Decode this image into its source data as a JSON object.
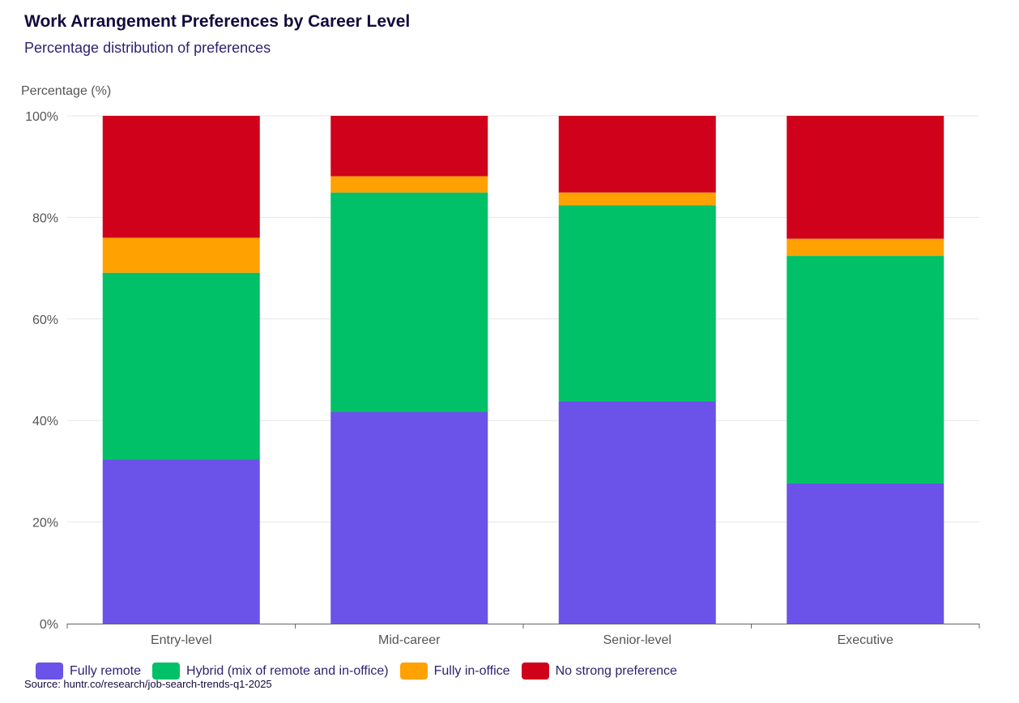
{
  "chart_data": {
    "type": "bar",
    "stacked": true,
    "title": "Work Arrangement Preferences by Career Level",
    "subtitle": "Percentage distribution of preferences",
    "ylabel": "Percentage (%)",
    "xlabel": "",
    "ylim": [
      0,
      100
    ],
    "yticks": [
      "0%",
      "20%",
      "40%",
      "60%",
      "80%",
      "100%"
    ],
    "grid": true,
    "legend_position": "bottom-left",
    "categories": [
      "Entry-level",
      "Mid-career",
      "Senior-level",
      "Executive"
    ],
    "series": [
      {
        "name": "Fully remote",
        "color": "#6b52e8",
        "values": [
          32.3,
          41.7,
          43.7,
          27.6
        ]
      },
      {
        "name": "Hybrid (mix of remote and in-office)",
        "color": "#00c167",
        "values": [
          36.8,
          43.2,
          38.7,
          44.8
        ]
      },
      {
        "name": "Fully in-office",
        "color": "#ffa100",
        "values": [
          6.9,
          3.2,
          2.5,
          3.4
        ]
      },
      {
        "name": "No strong preference",
        "color": "#d0021b",
        "values": [
          24.0,
          11.9,
          15.1,
          24.2
        ]
      }
    ],
    "source": "Source: huntr.co/research/job-search-trends-q1-2025"
  }
}
